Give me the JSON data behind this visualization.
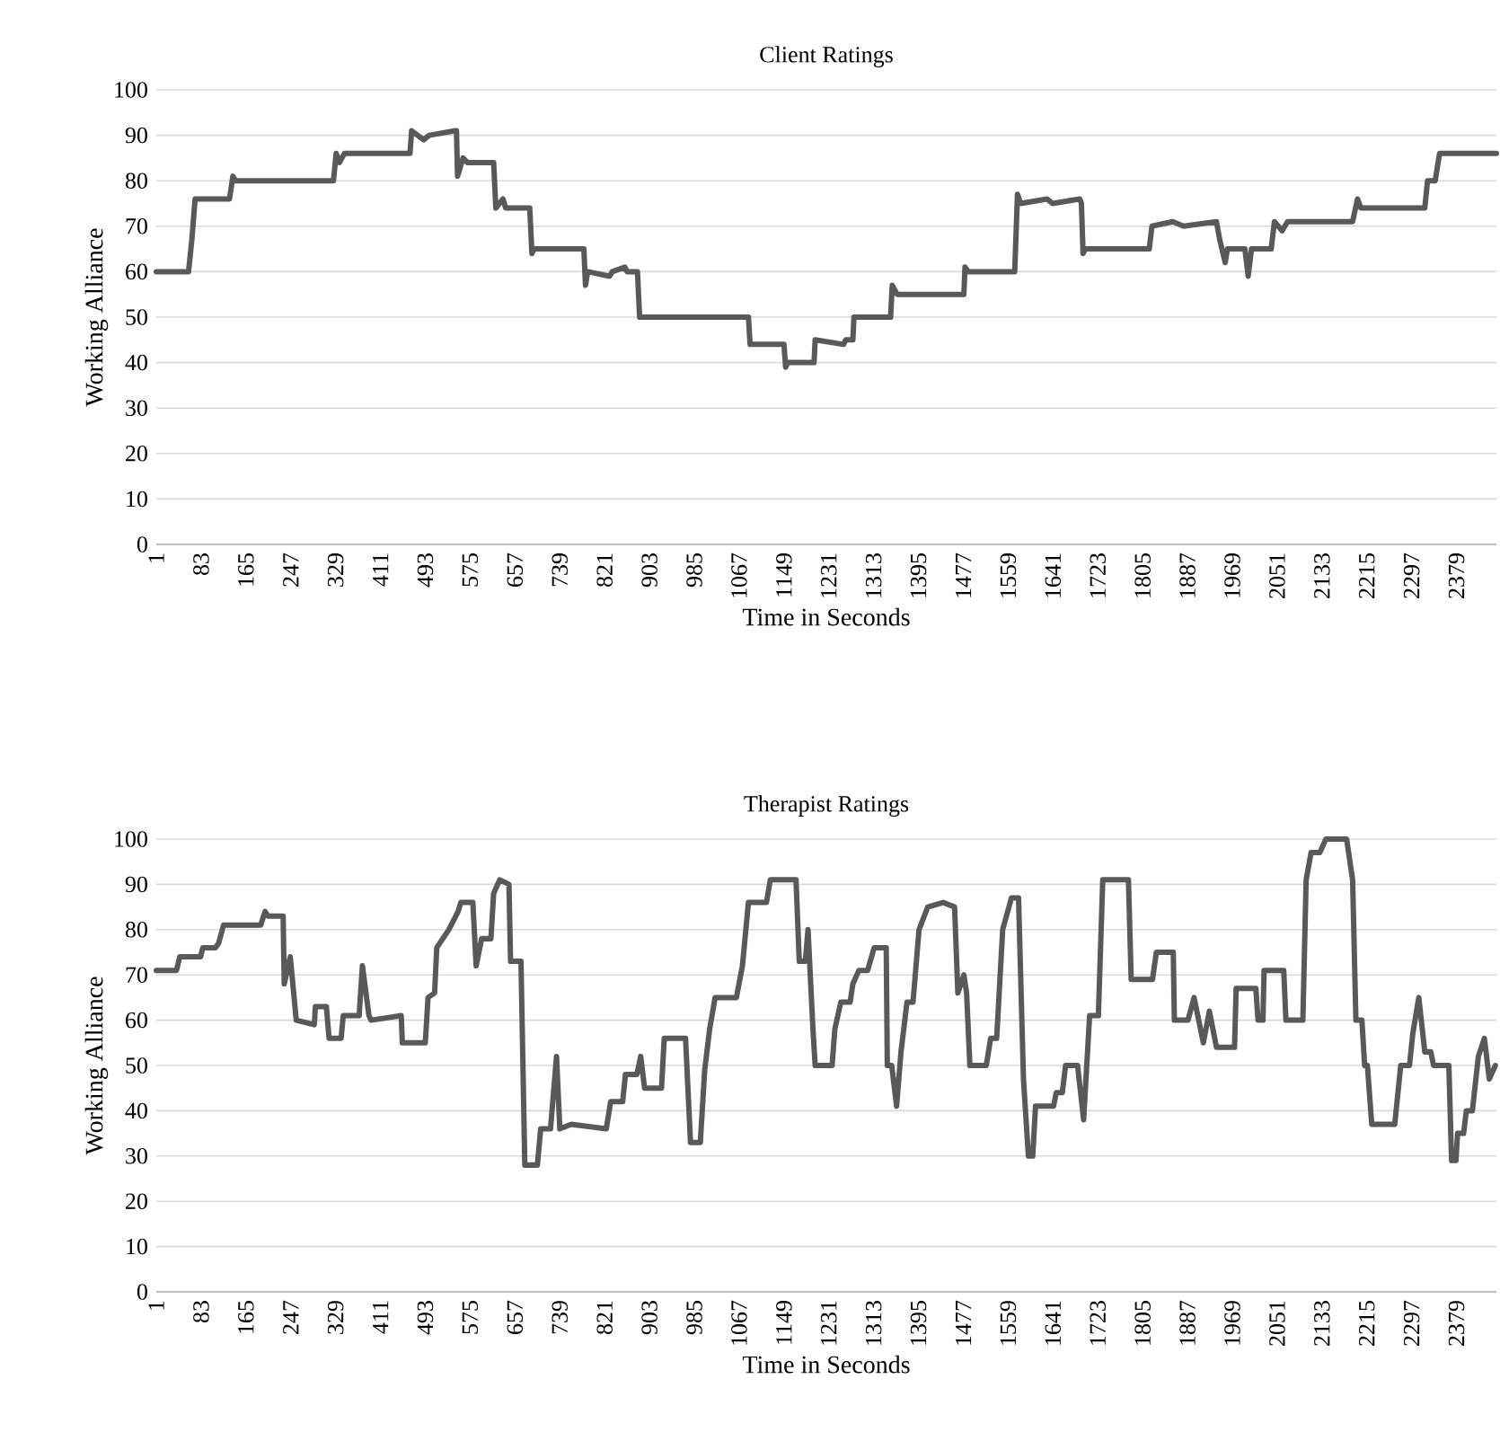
{
  "chart_data": [
    {
      "type": "line",
      "title": "Client Ratings",
      "xlabel": "Time in Seconds",
      "ylabel": "Working Alliance",
      "grid": "y",
      "xlim": [
        1,
        2452
      ],
      "ylim": [
        0,
        100
      ],
      "xticks": [
        1,
        83,
        165,
        247,
        329,
        411,
        493,
        575,
        657,
        739,
        821,
        903,
        985,
        1067,
        1149,
        1231,
        1313,
        1395,
        1477,
        1559,
        1641,
        1723,
        1805,
        1887,
        1969,
        2051,
        2133,
        2215,
        2297,
        2379
      ],
      "yticks": [
        0,
        10,
        20,
        30,
        40,
        50,
        60,
        70,
        80,
        90,
        100
      ],
      "series": [
        {
          "color": "#595959",
          "x": [
            1,
            60,
            66,
            72,
            135,
            141,
            146,
            325,
            330,
            336,
            345,
            465,
            468,
            490,
            500,
            548,
            550,
            552,
            562,
            570,
            618,
            622,
            635,
            640,
            684,
            688,
            692,
            783,
            786,
            790,
            830,
            835,
            858,
            862,
            881,
            885,
            1084,
            1087,
            1149,
            1152,
            1156,
            1204,
            1206,
            1258,
            1262,
            1275,
            1277,
            1344,
            1347,
            1356,
            1478,
            1480,
            1486,
            1571,
            1576,
            1582,
            1630,
            1640,
            1690,
            1693,
            1696,
            1700,
            1817,
            1822,
            1860,
            1880,
            1940,
            1946,
            1956,
            1960,
            1992,
            1998,
            2004,
            2040,
            2046,
            2060,
            2070,
            2189,
            2198,
            2204,
            2321,
            2326,
            2340,
            2348,
            2452
          ],
          "values": [
            60,
            60,
            67,
            76,
            76,
            81,
            80,
            80,
            86,
            84,
            86,
            86,
            91,
            89,
            90,
            91,
            91,
            81,
            85,
            84,
            84,
            74,
            76,
            74,
            74,
            64,
            65,
            65,
            57,
            60,
            59,
            60,
            61,
            60,
            60,
            50,
            50,
            44,
            44,
            39,
            40,
            40,
            45,
            44,
            45,
            45,
            50,
            50,
            57,
            55,
            55,
            61,
            60,
            60,
            77,
            75,
            76,
            75,
            76,
            75,
            64,
            65,
            65,
            70,
            71,
            70,
            71,
            67,
            62,
            65,
            65,
            59,
            65,
            65,
            71,
            69,
            71,
            71,
            76,
            74,
            74,
            80,
            80,
            86,
            86
          ]
        }
      ]
    },
    {
      "type": "line",
      "title": "Therapist Ratings",
      "xlabel": "Time in Seconds",
      "ylabel": "Working Alliance",
      "grid": "y",
      "xlim": [
        1,
        2452
      ],
      "ylim": [
        0,
        100
      ],
      "xticks": [
        1,
        83,
        165,
        247,
        329,
        411,
        493,
        575,
        657,
        739,
        821,
        903,
        985,
        1067,
        1149,
        1231,
        1313,
        1395,
        1477,
        1559,
        1641,
        1723,
        1805,
        1887,
        1969,
        2051,
        2133,
        2215,
        2297,
        2379
      ],
      "yticks": [
        0,
        10,
        20,
        30,
        40,
        50,
        60,
        70,
        80,
        90,
        100
      ],
      "series": [
        {
          "color": "#595959",
          "x": [
            1,
            38,
            44,
            82,
            86,
            109,
            115,
            124,
            192,
            200,
            205,
            233,
            235,
            246,
            257,
            290,
            292,
            312,
            317,
            339,
            343,
            372,
            378,
            390,
            394,
            449,
            451,
            493,
            498,
            510,
            514,
            536,
            553,
            558,
            580,
            586,
            596,
            613,
            618,
            629,
            646,
            649,
            668,
            675,
            698,
            704,
            722,
            733,
            739,
            760,
            824,
            832,
            854,
            859,
            880,
            887,
            894,
            925,
            930,
            969,
            978,
            996,
            1004,
            1013,
            1023,
            1062,
            1073,
            1084,
            1117,
            1124,
            1171,
            1177,
            1188,
            1193,
            1202,
            1206,
            1237,
            1242,
            1253,
            1270,
            1275,
            1286,
            1302,
            1314,
            1336,
            1338,
            1346,
            1355,
            1363,
            1374,
            1385,
            1396,
            1412,
            1440,
            1461,
            1467,
            1478,
            1483,
            1489,
            1519,
            1527,
            1538,
            1549,
            1565,
            1578,
            1587,
            1596,
            1604,
            1609,
            1642,
            1647,
            1658,
            1664,
            1686,
            1697,
            1708,
            1724,
            1732,
            1779,
            1784,
            1823,
            1830,
            1861,
            1863,
            1888,
            1899,
            1916,
            1927,
            1940,
            1973,
            1976,
            2012,
            2016,
            2025,
            2027,
            2063,
            2067,
            2098,
            2104,
            2113,
            2129,
            2140,
            2178,
            2189,
            2195,
            2206,
            2211,
            2216,
            2224,
            2266,
            2277,
            2293,
            2299,
            2310,
            2321,
            2332,
            2337,
            2365,
            2370,
            2378,
            2381,
            2392,
            2397,
            2408,
            2419,
            2430,
            2439,
            2450
          ],
          "values": [
            71,
            71,
            74,
            74,
            76,
            76,
            77,
            81,
            81,
            84,
            83,
            83,
            68,
            74,
            60,
            59,
            63,
            63,
            56,
            56,
            61,
            61,
            72,
            61,
            60,
            61,
            55,
            55,
            65,
            66,
            76,
            80,
            84,
            86,
            86,
            72,
            78,
            78,
            88,
            91,
            90,
            73,
            73,
            28,
            28,
            36,
            36,
            52,
            36,
            37,
            36,
            42,
            42,
            48,
            48,
            52,
            45,
            45,
            56,
            56,
            33,
            33,
            49,
            58,
            65,
            65,
            72,
            86,
            86,
            91,
            91,
            73,
            73,
            80,
            58,
            50,
            50,
            58,
            64,
            64,
            68,
            71,
            71,
            76,
            76,
            50,
            50,
            41,
            53,
            64,
            64,
            80,
            85,
            86,
            85,
            66,
            70,
            66,
            50,
            50,
            56,
            56,
            80,
            87,
            87,
            47,
            30,
            30,
            41,
            41,
            44,
            44,
            50,
            50,
            38,
            61,
            61,
            91,
            91,
            69,
            69,
            75,
            75,
            60,
            60,
            65,
            55,
            62,
            54,
            54,
            67,
            67,
            60,
            60,
            71,
            71,
            60,
            60,
            91,
            97,
            97,
            100,
            100,
            91,
            60,
            60,
            50,
            50,
            37,
            37,
            50,
            50,
            57,
            65,
            53,
            53,
            50,
            50,
            29,
            29,
            35,
            35,
            40,
            40,
            52,
            56,
            47,
            50
          ]
        }
      ]
    }
  ]
}
